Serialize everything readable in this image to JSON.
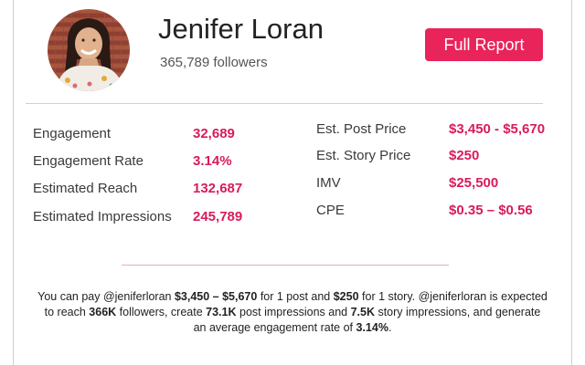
{
  "profile": {
    "name": "Jenifer Loran",
    "followers": "365,789 followers",
    "avatar_icon": "profile-photo"
  },
  "actions": {
    "full_report_label": "Full Report"
  },
  "colors": {
    "accent": "#e8245a",
    "value_text": "#d81b5c",
    "divider": "#cfcfcf"
  },
  "metrics_left": [
    {
      "label": "Engagement",
      "value": "32,689"
    },
    {
      "label": "Engagement Rate",
      "value": "3.14%"
    },
    {
      "label": "Estimated Reach",
      "value": "132,687"
    },
    {
      "label": "Estimated Impressions",
      "value": "245,789"
    }
  ],
  "metrics_right": [
    {
      "label": "Est. Post Price",
      "value": "$3,450 - $5,670"
    },
    {
      "label": "Est. Story Price",
      "value": "$250"
    },
    {
      "label": "IMV",
      "value": "$25,500"
    },
    {
      "label": "CPE",
      "value": "$0.35 – $0.56"
    }
  ],
  "summary": {
    "t1": "You can pay @jeniferloran ",
    "b1": "$3,450 – $5,670",
    "t2": " for 1 post and ",
    "b2": "$250",
    "t3": " for 1 story. @jeniferloran is expected to reach ",
    "b3": "366K",
    "t4": " followers, create ",
    "b4": "73.1K",
    "t5": " post impressions and ",
    "b5": "7.5K",
    "t6": " story impressions, and generate an average engagement rate of ",
    "b6": "3.14%",
    "t7": "."
  }
}
